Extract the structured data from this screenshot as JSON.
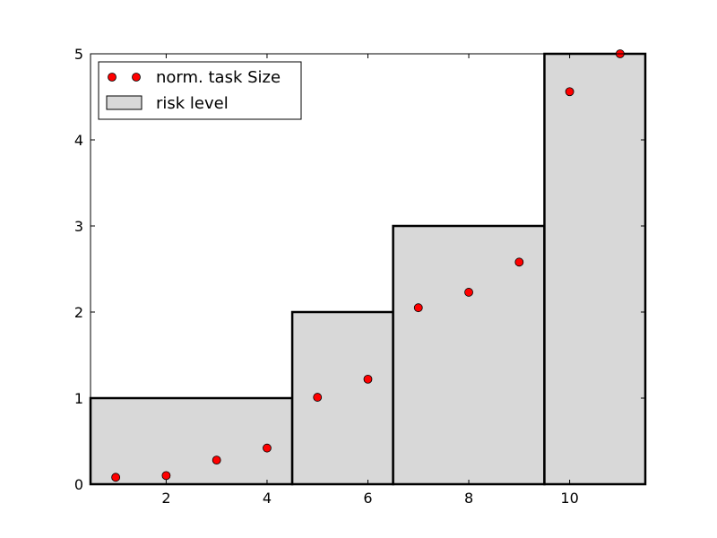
{
  "chart_data": {
    "type": "bar",
    "xlim": [
      0.5,
      11.5
    ],
    "ylim": [
      0,
      5
    ],
    "x_ticks": [
      2,
      4,
      6,
      8,
      10
    ],
    "y_ticks": [
      0,
      1,
      2,
      3,
      4,
      5
    ],
    "grid": false,
    "legend_position": "top-left",
    "bars": [
      {
        "x_start": 0.5,
        "x_end": 4.5,
        "value": 1
      },
      {
        "x_start": 4.5,
        "x_end": 6.5,
        "value": 2
      },
      {
        "x_start": 6.5,
        "x_end": 9.5,
        "value": 3
      },
      {
        "x_start": 9.5,
        "x_end": 11.5,
        "value": 5
      }
    ],
    "points": [
      {
        "x": 1,
        "y": 0.08
      },
      {
        "x": 2,
        "y": 0.1
      },
      {
        "x": 3,
        "y": 0.28
      },
      {
        "x": 4,
        "y": 0.42
      },
      {
        "x": 5,
        "y": 1.01
      },
      {
        "x": 6,
        "y": 1.22
      },
      {
        "x": 7,
        "y": 2.05
      },
      {
        "x": 8,
        "y": 2.23
      },
      {
        "x": 9,
        "y": 2.58
      },
      {
        "x": 10,
        "y": 4.56
      },
      {
        "x": 11,
        "y": 5.0
      }
    ],
    "series": [
      {
        "name": "norm. task Size",
        "kind": "points",
        "color": "#ff0000"
      },
      {
        "name": "risk level",
        "kind": "bars",
        "color": "#d8d8d8"
      }
    ]
  }
}
